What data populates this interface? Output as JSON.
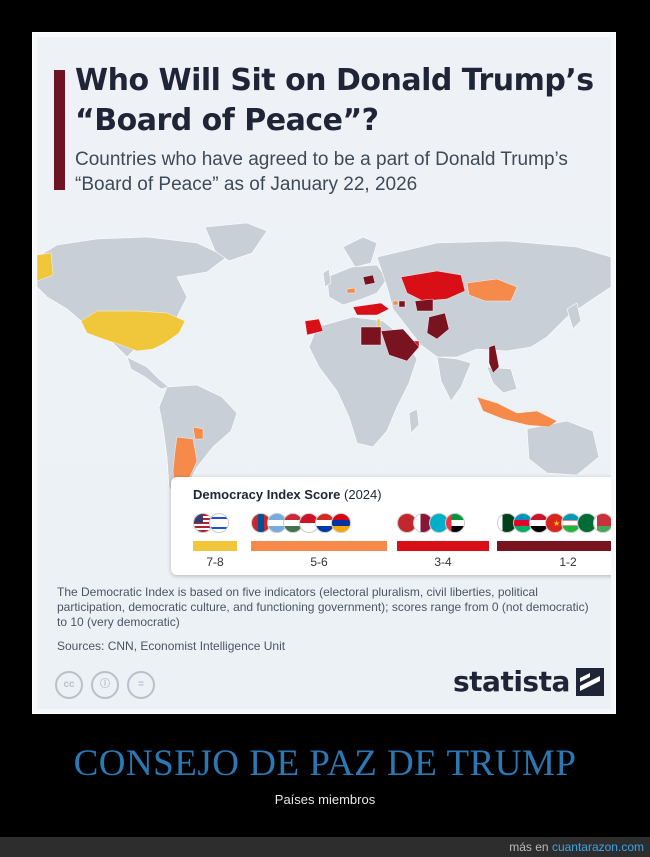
{
  "title": "Who Will Sit on Donald Trump’s “Board of Peace”?",
  "subtitle": "Countries who have agreed to be a part of Donald Trump’s “Board of Peace” as of January 22, 2026",
  "colors": {
    "land": "#c9cfd6",
    "sea": "#edf1f6",
    "score_7_8": "#f0c63a",
    "score_5_6": "#f58a4b",
    "score_3_4": "#d90f18",
    "score_1_2": "#7a1320",
    "title_accent": "#6e1323",
    "caption": "#2a79b5"
  },
  "legend": {
    "title_bold": "Democracy Index Score",
    "title_rest": " (2024)",
    "groups": [
      {
        "range": "7-8",
        "color": "#f0c63a",
        "flags": [
          "us-flag-icon",
          "israel-flag-icon"
        ]
      },
      {
        "range": "5-6",
        "color": "#f58a4b",
        "flags": [
          "mongolia-flag-icon",
          "argentina-flag-icon",
          "hungary-flag-icon",
          "indonesia-flag-icon",
          "paraguay-flag-icon",
          "armenia-flag-icon"
        ]
      },
      {
        "range": "3-4",
        "color": "#d90f18",
        "flags": [
          "morocco-flag-icon",
          "qatar-flag-icon",
          "kazakhstan-flag-icon",
          "uae-flag-icon"
        ]
      },
      {
        "range": "1-2",
        "color": "#7a1320",
        "flags": [
          "pakistan-flag-icon",
          "azerbaijan-flag-icon",
          "egypt-flag-icon",
          "vietnam-flag-icon",
          "uzbekistan-flag-icon",
          "saudi-arabia-flag-icon",
          "belarus-flag-icon"
        ]
      }
    ]
  },
  "notes": "The Democratic Index is based on five indicators (electoral pluralism, civil liberties, political participation, democratic culture, and functioning government); scores range from 0 (not democratic) to 10 (very democratic)",
  "sources": "Sources: CNN, Economist Intelligence Unit",
  "license_icons": [
    "cc",
    "ⓘ",
    "="
  ],
  "brand": "statista",
  "caption": "CONSEJO DE PAZ DE TRUMP",
  "subcaption": "Países miembros",
  "footer": {
    "prefix": "más en ",
    "site": "cuantarazon.com"
  }
}
